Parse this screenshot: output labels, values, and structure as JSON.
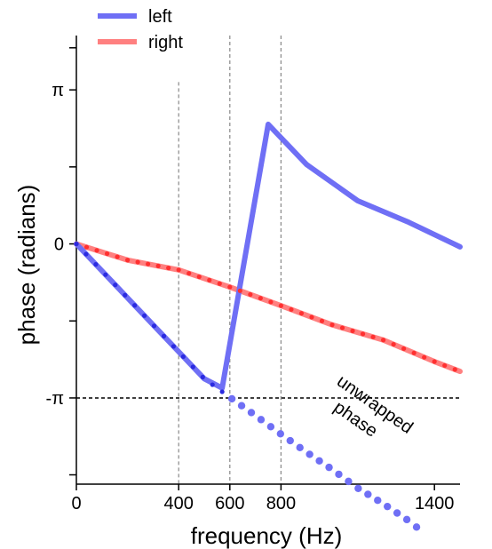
{
  "chart_data": {
    "type": "line",
    "xlabel": "frequency (Hz)",
    "ylabel": "phase (radians)",
    "xlim": [
      0,
      1500
    ],
    "ylim": [
      -4.9,
      4.25
    ],
    "x_tick_labels": [
      "0",
      "400",
      "600",
      "800",
      "1400"
    ],
    "x_ticks": [
      0,
      400,
      600,
      800,
      1400
    ],
    "y_tick_labels": [
      "-π",
      "0",
      "π"
    ],
    "y_ticks": [
      -3.14159,
      0,
      3.14159
    ],
    "y_minor_ticks": [
      -4.71,
      -1.571,
      1.571,
      4.0
    ],
    "vertical_reference_lines": [
      400,
      600,
      800
    ],
    "horizontal_reference_lines": [
      -3.14159
    ],
    "legend_position": "top-left",
    "colors": {
      "left": "#6f6ff5",
      "left_dots": "#2a2ae0",
      "right": "#ff8080",
      "right_dots": "#ff3030",
      "unwrapped": "#6f6ff5",
      "reference": "#000000"
    },
    "series": [
      {
        "name": "left",
        "x": [
          0,
          100,
          200,
          300,
          400,
          500,
          570,
          750,
          900,
          1100,
          1300,
          1500
        ],
        "y": [
          0,
          -0.55,
          -1.1,
          -1.65,
          -2.2,
          -2.75,
          -2.94,
          2.44,
          1.62,
          0.88,
          0.44,
          -0.06
        ]
      },
      {
        "name": "right",
        "x": [
          0,
          200,
          400,
          600,
          800,
          1000,
          1200,
          1400,
          1500
        ],
        "y": [
          0,
          -0.33,
          -0.53,
          -0.88,
          -1.26,
          -1.65,
          -1.96,
          -2.4,
          -2.6
        ]
      }
    ],
    "unwrapped_phase": {
      "x": [
        0,
        100,
        200,
        300,
        400,
        500,
        600,
        700,
        800,
        900,
        1000,
        1100,
        1200,
        1300,
        1360
      ],
      "y": [
        0,
        -0.55,
        -1.1,
        -1.65,
        -2.2,
        -2.75,
        -3.13,
        -3.5,
        -3.88,
        -4.25,
        -4.6,
        -4.98,
        -5.3,
        -5.65,
        -5.9
      ]
    },
    "annotation": "unwrapped\nphase"
  },
  "legend": {
    "left_label": "left",
    "right_label": "right"
  },
  "annotation_lines": [
    "unwrapped",
    "phase"
  ]
}
